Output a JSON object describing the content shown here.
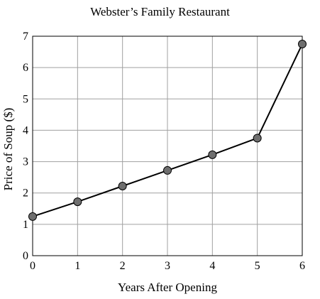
{
  "chart_data": {
    "type": "line",
    "title": "Webster’s Family Restaurant",
    "xlabel": "Years After Opening",
    "ylabel": "Price of Soup ($)",
    "x": [
      0,
      1,
      2,
      3,
      4,
      5,
      6
    ],
    "series": [
      {
        "values": [
          1.25,
          1.72,
          2.22,
          2.72,
          3.22,
          3.75,
          6.75
        ]
      }
    ],
    "xlim": [
      0,
      6
    ],
    "ylim": [
      0,
      7
    ],
    "xticks": [
      "0",
      "1",
      "2",
      "3",
      "4",
      "5",
      "6"
    ],
    "yticks": [
      "0",
      "1",
      "2",
      "3",
      "4",
      "5",
      "6",
      "7"
    ],
    "grid": true,
    "colors": {
      "line": "#000000",
      "marker_fill": "#6e6e6e",
      "grid": "#a0a0a0"
    }
  }
}
